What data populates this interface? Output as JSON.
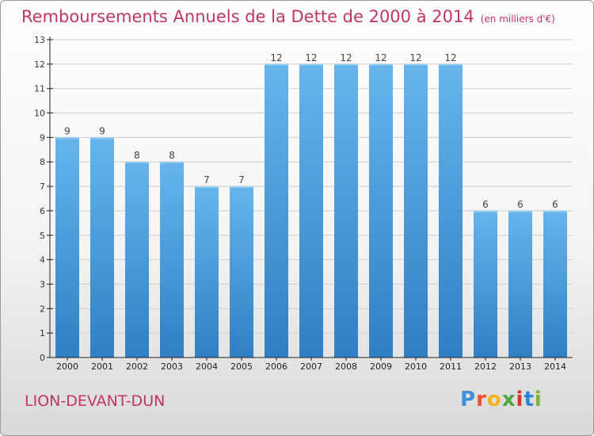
{
  "header": {
    "title": "Remboursements Annuels de la Dette de 2000 à 2014",
    "unit": "(en milliers d'€)"
  },
  "footer": {
    "place": "LION-DEVANT-DUN",
    "logo_letters": [
      "P",
      "r",
      "o",
      "x",
      "i",
      "t",
      "i"
    ],
    "logo_colors": [
      "#3d8fd6",
      "#e8512c",
      "#f2b21b",
      "#4aa83c",
      "#d8332a",
      "#2e86d6",
      "#79b82e"
    ]
  },
  "colors": {
    "bar_light": "#67b5ec",
    "bar_dark": "#2f7fc5",
    "grid": "#cfcfcf",
    "axis": "#222222",
    "title": "#c0365f"
  },
  "chart_data": {
    "type": "bar",
    "categories": [
      "2000",
      "2001",
      "2002",
      "2003",
      "2004",
      "2005",
      "2006",
      "2007",
      "2008",
      "2009",
      "2010",
      "2011",
      "2012",
      "2013",
      "2014"
    ],
    "values": [
      9,
      9,
      8,
      8,
      7,
      7,
      12,
      12,
      12,
      12,
      12,
      12,
      6,
      6,
      6
    ],
    "yticks": [
      0,
      1,
      2,
      3,
      4,
      5,
      6,
      7,
      8,
      9,
      10,
      11,
      12,
      13
    ],
    "ylim": [
      0,
      13
    ],
    "grid": true,
    "title": "Remboursements Annuels de la Dette de 2000 à 2014",
    "xlabel": "",
    "ylabel": ""
  }
}
